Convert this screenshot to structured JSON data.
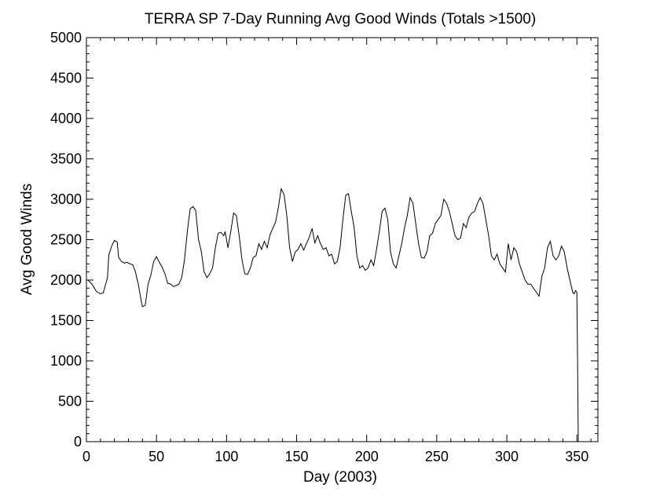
{
  "chart_data": {
    "type": "line",
    "title": "TERRA SP 7-Day Running Avg Good Winds (Totals >1500)",
    "xlabel": "Day (2003)",
    "ylabel": "Avg Good Winds",
    "xlim": [
      0,
      365
    ],
    "ylim": [
      0,
      5000
    ],
    "grid": false,
    "x_ticks": [
      0,
      50,
      100,
      150,
      200,
      250,
      300,
      350
    ],
    "y_ticks": [
      0,
      500,
      1000,
      1500,
      2000,
      2500,
      3000,
      3500,
      4000,
      4500,
      5000
    ],
    "series": [
      {
        "color": "#000000",
        "points": [
          [
            1,
            2000
          ],
          [
            4,
            1950
          ],
          [
            7,
            1860
          ],
          [
            10,
            1830
          ],
          [
            12,
            1840
          ],
          [
            15,
            2030
          ],
          [
            16,
            2310
          ],
          [
            18,
            2420
          ],
          [
            20,
            2490
          ],
          [
            22,
            2470
          ],
          [
            23,
            2280
          ],
          [
            25,
            2230
          ],
          [
            27,
            2210
          ],
          [
            29,
            2220
          ],
          [
            31,
            2200
          ],
          [
            33,
            2190
          ],
          [
            35,
            2100
          ],
          [
            37,
            1950
          ],
          [
            39,
            1750
          ],
          [
            40,
            1670
          ],
          [
            42,
            1690
          ],
          [
            44,
            1950
          ],
          [
            46,
            2060
          ],
          [
            48,
            2230
          ],
          [
            50,
            2290
          ],
          [
            52,
            2220
          ],
          [
            54,
            2160
          ],
          [
            56,
            2080
          ],
          [
            58,
            1960
          ],
          [
            60,
            1950
          ],
          [
            62,
            1920
          ],
          [
            64,
            1930
          ],
          [
            66,
            1950
          ],
          [
            68,
            2030
          ],
          [
            70,
            2250
          ],
          [
            72,
            2600
          ],
          [
            74,
            2880
          ],
          [
            76,
            2910
          ],
          [
            78,
            2860
          ],
          [
            80,
            2500
          ],
          [
            82,
            2350
          ],
          [
            84,
            2100
          ],
          [
            86,
            2030
          ],
          [
            88,
            2080
          ],
          [
            90,
            2150
          ],
          [
            92,
            2400
          ],
          [
            94,
            2580
          ],
          [
            96,
            2590
          ],
          [
            98,
            2550
          ],
          [
            99,
            2600
          ],
          [
            101,
            2400
          ],
          [
            103,
            2600
          ],
          [
            105,
            2830
          ],
          [
            107,
            2800
          ],
          [
            109,
            2550
          ],
          [
            111,
            2250
          ],
          [
            113,
            2080
          ],
          [
            115,
            2070
          ],
          [
            117,
            2150
          ],
          [
            119,
            2280
          ],
          [
            121,
            2300
          ],
          [
            123,
            2450
          ],
          [
            125,
            2380
          ],
          [
            127,
            2480
          ],
          [
            129,
            2400
          ],
          [
            131,
            2560
          ],
          [
            133,
            2640
          ],
          [
            135,
            2720
          ],
          [
            137,
            2900
          ],
          [
            139,
            3130
          ],
          [
            141,
            3060
          ],
          [
            143,
            2800
          ],
          [
            145,
            2400
          ],
          [
            147,
            2230
          ],
          [
            149,
            2350
          ],
          [
            151,
            2380
          ],
          [
            153,
            2450
          ],
          [
            155,
            2370
          ],
          [
            157,
            2450
          ],
          [
            159,
            2530
          ],
          [
            161,
            2640
          ],
          [
            163,
            2460
          ],
          [
            165,
            2550
          ],
          [
            167,
            2450
          ],
          [
            169,
            2380
          ],
          [
            171,
            2400
          ],
          [
            173,
            2300
          ],
          [
            175,
            2320
          ],
          [
            177,
            2200
          ],
          [
            179,
            2230
          ],
          [
            181,
            2400
          ],
          [
            183,
            2750
          ],
          [
            185,
            3050
          ],
          [
            187,
            3070
          ],
          [
            189,
            2850
          ],
          [
            191,
            2650
          ],
          [
            193,
            2300
          ],
          [
            195,
            2150
          ],
          [
            197,
            2180
          ],
          [
            199,
            2120
          ],
          [
            201,
            2150
          ],
          [
            203,
            2250
          ],
          [
            205,
            2180
          ],
          [
            207,
            2380
          ],
          [
            209,
            2600
          ],
          [
            211,
            2850
          ],
          [
            213,
            2890
          ],
          [
            215,
            2750
          ],
          [
            217,
            2350
          ],
          [
            219,
            2200
          ],
          [
            221,
            2150
          ],
          [
            223,
            2300
          ],
          [
            225,
            2450
          ],
          [
            227,
            2650
          ],
          [
            229,
            2800
          ],
          [
            231,
            3020
          ],
          [
            233,
            2950
          ],
          [
            235,
            2700
          ],
          [
            237,
            2450
          ],
          [
            239,
            2280
          ],
          [
            241,
            2270
          ],
          [
            243,
            2350
          ],
          [
            245,
            2550
          ],
          [
            247,
            2580
          ],
          [
            249,
            2700
          ],
          [
            251,
            2750
          ],
          [
            253,
            2800
          ],
          [
            255,
            3000
          ],
          [
            257,
            2950
          ],
          [
            259,
            2850
          ],
          [
            261,
            2700
          ],
          [
            263,
            2550
          ],
          [
            265,
            2500
          ],
          [
            267,
            2520
          ],
          [
            269,
            2700
          ],
          [
            271,
            2650
          ],
          [
            273,
            2780
          ],
          [
            275,
            2830
          ],
          [
            277,
            2850
          ],
          [
            279,
            2950
          ],
          [
            281,
            3020
          ],
          [
            283,
            2950
          ],
          [
            285,
            2750
          ],
          [
            287,
            2550
          ],
          [
            289,
            2300
          ],
          [
            291,
            2250
          ],
          [
            293,
            2320
          ],
          [
            295,
            2200
          ],
          [
            297,
            2150
          ],
          [
            299,
            2100
          ],
          [
            301,
            2450
          ],
          [
            303,
            2250
          ],
          [
            305,
            2400
          ],
          [
            307,
            2350
          ],
          [
            309,
            2200
          ],
          [
            311,
            2100
          ],
          [
            313,
            2000
          ],
          [
            315,
            1950
          ],
          [
            317,
            1950
          ],
          [
            319,
            1900
          ],
          [
            321,
            1850
          ],
          [
            323,
            1800
          ],
          [
            325,
            2050
          ],
          [
            327,
            2150
          ],
          [
            329,
            2400
          ],
          [
            331,
            2480
          ],
          [
            333,
            2300
          ],
          [
            335,
            2250
          ],
          [
            337,
            2300
          ],
          [
            339,
            2420
          ],
          [
            341,
            2350
          ],
          [
            343,
            2150
          ],
          [
            345,
            2000
          ],
          [
            347,
            1850
          ],
          [
            348,
            1830
          ],
          [
            349,
            1870
          ],
          [
            350,
            1850
          ],
          [
            350.5,
            1000
          ],
          [
            351,
            0
          ]
        ]
      }
    ]
  }
}
